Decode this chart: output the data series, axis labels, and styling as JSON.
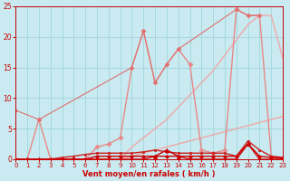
{
  "title": "",
  "xlabel": "Vent moyen/en rafales ( km/h )",
  "bg_color": "#c8eaf0",
  "grid_color": "#a8d8e0",
  "xmin": 0,
  "xmax": 23,
  "ymin": 0,
  "ymax": 25,
  "yticks": [
    0,
    5,
    10,
    15,
    20,
    25
  ],
  "xticks": [
    0,
    1,
    2,
    3,
    4,
    5,
    6,
    7,
    8,
    9,
    10,
    11,
    12,
    13,
    14,
    15,
    16,
    17,
    18,
    19,
    20,
    21,
    22,
    23
  ],
  "series": [
    {
      "comment": "straight diagonal line bottom - light pink, no marker",
      "x": [
        0,
        1,
        2,
        3,
        4,
        5,
        6,
        7,
        8,
        9,
        10,
        11,
        12,
        13,
        14,
        15,
        16,
        17,
        18,
        19,
        20,
        21,
        22,
        23
      ],
      "y": [
        0,
        0,
        0,
        0,
        0,
        0,
        0,
        0,
        0,
        0,
        0.5,
        1.0,
        1.5,
        2.0,
        2.5,
        3.0,
        3.5,
        4.0,
        4.5,
        5.0,
        5.5,
        6.0,
        6.5,
        7.0
      ],
      "color": "#f0a8a8",
      "lw": 1.0,
      "marker": null
    },
    {
      "comment": "straight diagonal line upper - light pink, no marker",
      "x": [
        0,
        1,
        2,
        3,
        4,
        5,
        6,
        7,
        8,
        9,
        10,
        11,
        12,
        13,
        14,
        15,
        16,
        17,
        18,
        19,
        20,
        21,
        22,
        23
      ],
      "y": [
        0,
        0,
        0,
        0,
        0,
        0,
        0,
        0,
        0,
        0,
        2.0,
        3.5,
        5.0,
        6.5,
        8.5,
        10.5,
        12.5,
        14.5,
        17.0,
        19.5,
        22.0,
        23.5,
        23.5,
        16.5
      ],
      "color": "#f0a8a8",
      "lw": 1.0,
      "marker": null
    },
    {
      "comment": "jagged line with diamond markers - medium pink",
      "x": [
        0,
        1,
        2,
        3,
        4,
        5,
        6,
        7,
        8,
        9,
        10,
        11,
        12,
        13,
        14,
        15,
        16,
        17,
        18,
        19,
        20,
        21,
        22,
        23
      ],
      "y": [
        0,
        0,
        6.5,
        0,
        0,
        0,
        0,
        2.0,
        2.5,
        3.5,
        15.0,
        21.0,
        12.5,
        15.5,
        18.0,
        15.5,
        1.5,
        1.0,
        1.5,
        24.5,
        23.5,
        23.5,
        0.5,
        0
      ],
      "color": "#e88888",
      "lw": 1.0,
      "marker": "D",
      "markersize": 2.5
    },
    {
      "comment": "near-zero line with square markers - dark red",
      "x": [
        0,
        1,
        2,
        3,
        4,
        5,
        6,
        7,
        8,
        9,
        10,
        11,
        12,
        13,
        14,
        15,
        16,
        17,
        18,
        19,
        20,
        21,
        22,
        23
      ],
      "y": [
        0,
        0,
        0,
        0,
        0.3,
        0.5,
        0.8,
        1.0,
        1.0,
        1.0,
        1.0,
        1.2,
        1.5,
        1.2,
        1.0,
        1.0,
        1.0,
        1.0,
        1.0,
        0.5,
        3.0,
        1.5,
        0.5,
        0.3
      ],
      "color": "#cc2222",
      "lw": 1.0,
      "marker": "s",
      "markersize": 2.0
    },
    {
      "comment": "triangle markers low line - dark red",
      "x": [
        0,
        1,
        2,
        3,
        4,
        5,
        6,
        7,
        8,
        9,
        10,
        11,
        12,
        13,
        14,
        15,
        16,
        17,
        18,
        19,
        20,
        21,
        22,
        23
      ],
      "y": [
        0,
        0,
        0,
        0,
        0,
        0,
        0,
        0,
        0,
        0,
        0,
        0,
        0.5,
        1.5,
        0.5,
        0,
        0,
        0,
        0,
        0,
        2.5,
        0,
        0,
        0
      ],
      "color": "#cc0000",
      "lw": 1.0,
      "marker": "^",
      "markersize": 3.0
    },
    {
      "comment": "flat near-zero with diamond - dark red",
      "x": [
        0,
        1,
        2,
        3,
        4,
        5,
        6,
        7,
        8,
        9,
        10,
        11,
        12,
        13,
        14,
        15,
        16,
        17,
        18,
        19,
        20,
        21,
        22,
        23
      ],
      "y": [
        0,
        0,
        0,
        0,
        0,
        0,
        0,
        0.5,
        0.5,
        0.5,
        0.5,
        0.5,
        0.5,
        0.5,
        0.5,
        0.5,
        0.5,
        0.5,
        0.5,
        0.5,
        2.5,
        0.5,
        0.3,
        0.2
      ],
      "color": "#cc0000",
      "lw": 1.0,
      "marker": "D",
      "markersize": 2.0
    },
    {
      "comment": "high spike line - pinkish red with dots",
      "x": [
        0,
        2,
        10,
        11,
        12,
        13,
        14,
        19,
        20,
        21
      ],
      "y": [
        8,
        6.5,
        15,
        21,
        12.5,
        15.5,
        18,
        24.5,
        23.5,
        23.5
      ],
      "color": "#e07070",
      "lw": 0.8,
      "marker": "D",
      "markersize": 2.0
    }
  ],
  "tick_color": "#cc0000"
}
